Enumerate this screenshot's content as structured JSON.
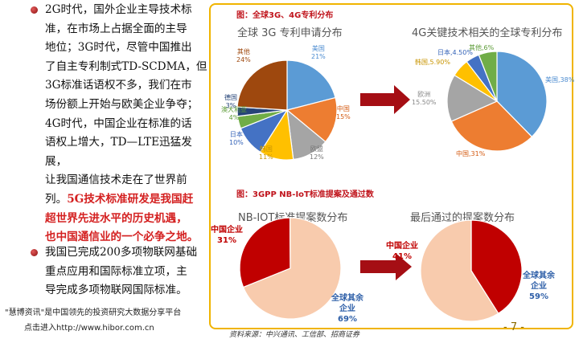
{
  "left_text": {
    "para1": [
      "2G时代，国外企业主导技术标",
      "准，在市场上占据全面的主导",
      "地位；3G时代，尽管中国推出",
      "了自主专利制式TD-SCDMA，但",
      "3G标准话语权不多，我们在市",
      "场份额上开始与欧美企业争夺；",
      "4G时代，中国企业在标准的话",
      "语权上增大，TD—LTE迅猛发展，",
      "让我国通信技术走在了世界前"
    ],
    "para1_tail": "列。",
    "para1_red": [
      "5G技术标准研发是我国赶",
      "超世界先进水平的历史机遇，",
      "也中国通信业的一个必争之地。"
    ],
    "para2": [
      "我国已完成200多项物联网基础",
      "重点应用和国际标准立项，主",
      "导完成多项物联网国际标准。"
    ]
  },
  "footer": {
    "brand": "\"慧博资讯\"是中国领先的投资研究大数据分享平台",
    "link": "点击进入http://www.hibor.com.cn",
    "source": "资料来源：中兴通讯、工信部、招商证券",
    "page": "- 7 -"
  },
  "figure1": {
    "caption": "图：全球3G、4G专利分布",
    "chart_3g_title": "全球 3G 专利申请分布",
    "chart_4g_title": "4G关键技术相关的全球专利分布"
  },
  "figure2": {
    "caption": "图：3GPP NB-IoT标准提案及通过数",
    "chart_a_title": "NB-IOT标准提案数分布",
    "chart_b_title": "最后通过的提案数分布"
  },
  "chart_data": [
    {
      "type": "pie",
      "title": "全球 3G 专利申请分布",
      "labels": [
        "美国",
        "中国",
        "欧盟",
        "韩国",
        "日本",
        "澳大利亚",
        "德国",
        "其他"
      ],
      "values": [
        21,
        15,
        12,
        11,
        10,
        4,
        3,
        24
      ],
      "colors": [
        "#5b9bd5",
        "#ed7d31",
        "#a5a5a5",
        "#ffc000",
        "#4472c4",
        "#70ad47",
        "#264478",
        "#9e480e"
      ]
    },
    {
      "type": "pie",
      "title": "4G关键技术相关的全球专利分布",
      "labels": [
        "美国",
        "中国",
        "欧洲",
        "韩国",
        "日本",
        "其他"
      ],
      "values": [
        38,
        31,
        15.5,
        5.9,
        4.5,
        6
      ],
      "display": [
        "美国,38%",
        "中国,31%",
        "欧洲,15.50%",
        "韩国,5.90%",
        "日本,4.50%",
        "其他,6%"
      ],
      "colors": [
        "#5b9bd5",
        "#ed7d31",
        "#a5a5a5",
        "#ffc000",
        "#4472c4",
        "#70ad47"
      ]
    },
    {
      "type": "pie",
      "title": "NB-IOT标准提案数分布",
      "labels": [
        "中国企业",
        "全球其余企业"
      ],
      "values": [
        31,
        69
      ],
      "colors": [
        "#c00000",
        "#f8cbad"
      ]
    },
    {
      "type": "pie",
      "title": "最后通过的提案数分布",
      "labels": [
        "中国企业",
        "全球其余企业"
      ],
      "values": [
        41,
        59
      ],
      "colors": [
        "#c00000",
        "#f8cbad"
      ]
    }
  ]
}
